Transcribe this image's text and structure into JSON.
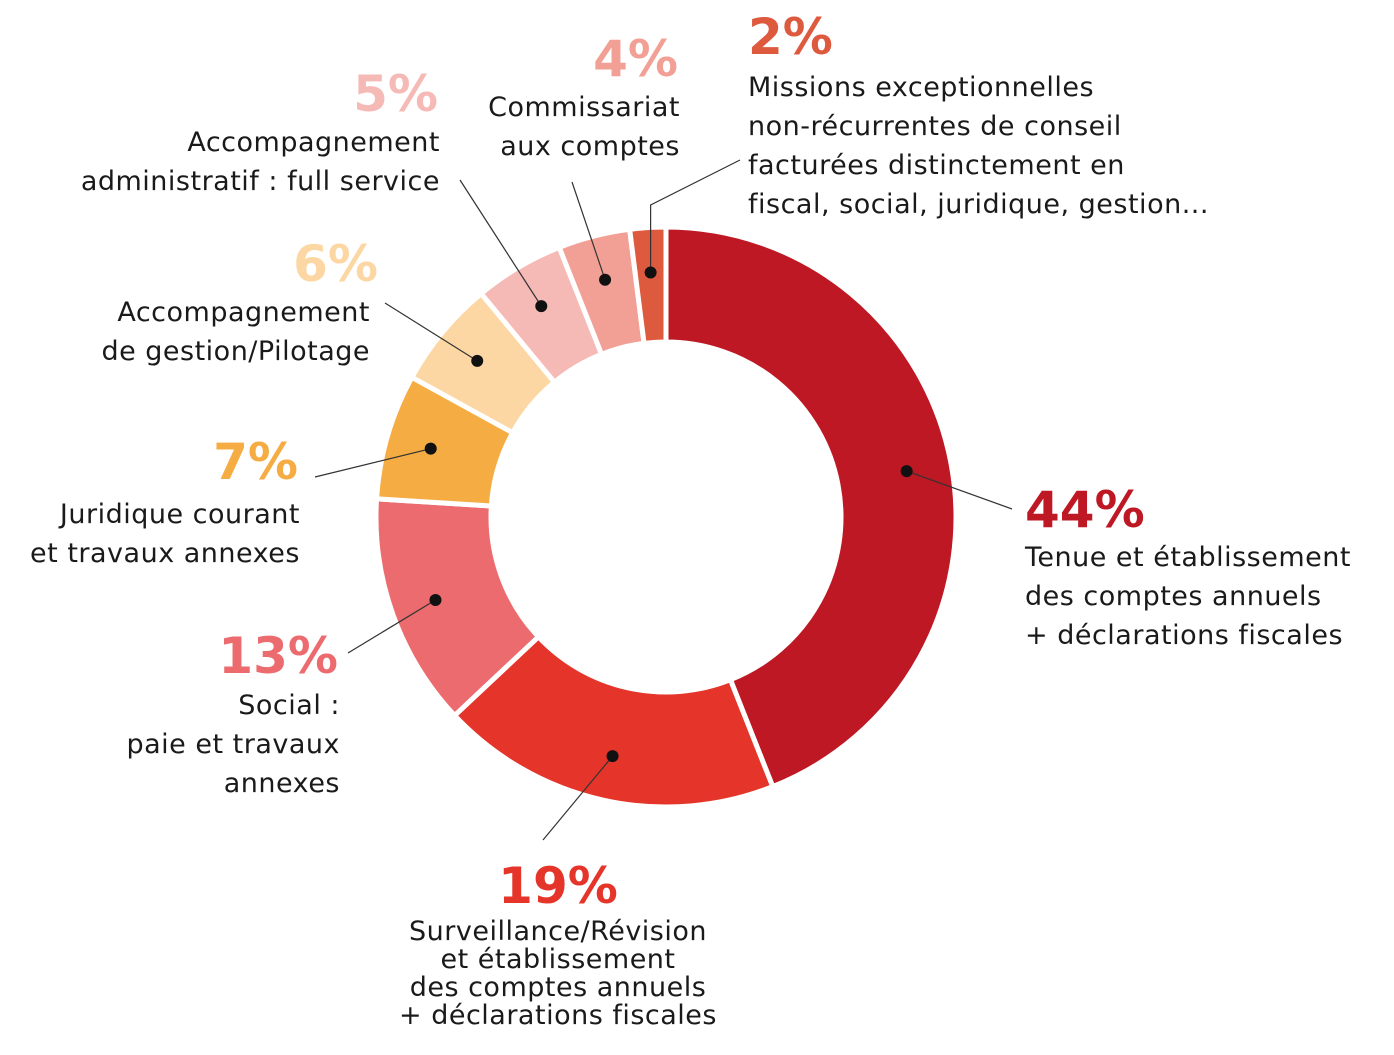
{
  "chart_data": {
    "type": "donut",
    "categories": [
      "Tenue et établissement\n des comptes annuels\n+ déclarations fiscales",
      "Surveillance/Révision\net établissement\ndes comptes annuels\n+ déclarations fiscales",
      "Social :\npaie et travaux\nannexes",
      "Juridique courant\net travaux annexes",
      "Accompagnement\nde gestion/Pilotage",
      "Accompagnement\nadministratif : full service",
      "Commissariat\naux comptes",
      "Missions exceptionnelles\nnon-récurrentes de conseil\nfacturées distinctement en\nfiscal, social, juridique, gestion..."
    ],
    "values": [
      44,
      19,
      13,
      7,
      6,
      5,
      4,
      2
    ],
    "value_labels": [
      "44%",
      "19%",
      "13%",
      "7%",
      "6%",
      "5%",
      "4%",
      "2%"
    ],
    "colors": [
      "#be1824",
      "#e5352b",
      "#ec6b6e",
      "#f5ac43",
      "#fcd7a3",
      "#f6bab6",
      "#f2a095",
      "#de5a3f"
    ]
  }
}
